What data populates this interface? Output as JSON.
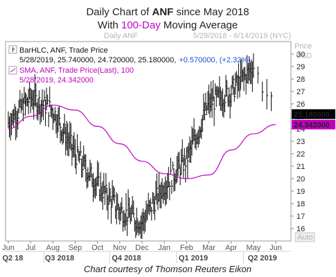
{
  "title": {
    "line1_a": "Daily Chart of ",
    "line1_b": "ANF",
    "line1_c": " since May 2018",
    "line2_a": "With ",
    "line2_b": "100-Day",
    "line2_c": " Moving Average"
  },
  "header_left": "Daily ANF",
  "date_range": "5/29/2018 - 6/14/2019 (NYC)",
  "price_header": "Price",
  "currency": "USD",
  "auto_label": "Auto",
  "credit": "Chart courtesy of Thomson Reuters Eikon",
  "legend": {
    "bar_title": "BarHLC, ANF, Trade Price",
    "bar_values": "5/28/2019, 25.740000, 24.720000, 25.180000,",
    "bar_change": "+0.570000, (+2.32%)",
    "sma_title": "SMA, ANF, Trade Price(Last), 100",
    "sma_values": "5/28/2019, 24.342000"
  },
  "tags": {
    "last_price": "25.180000",
    "sma_value": "24.342000"
  },
  "chart_data": {
    "type": "line",
    "x": [
      "2018-06",
      "2018-07",
      "2018-08",
      "2018-09",
      "2018-10",
      "2018-11",
      "2018-12",
      "2019-01",
      "2019-02",
      "2019-03",
      "2019-04",
      "2019-05",
      "2019-05-28"
    ],
    "series": [
      {
        "name": "BarHLC, ANF, Trade Price",
        "values": [
          24.5,
          26.5,
          25.5,
          22.0,
          19.5,
          17.5,
          16.5,
          19.5,
          21.5,
          26.0,
          27.0,
          29.0,
          25.18
        ]
      },
      {
        "name": "SMA, ANF, Trade Price(Last), 100",
        "values": [
          24.0,
          25.0,
          25.9,
          25.5,
          24.2,
          22.8,
          21.4,
          20.4,
          20.0,
          20.3,
          22.3,
          23.6,
          24.342
        ]
      }
    ],
    "ylim": [
      15,
      31
    ],
    "yticks": [
      16,
      17,
      18,
      19,
      20,
      21,
      22,
      23,
      24,
      25,
      26,
      27,
      28,
      29,
      30
    ],
    "month_labels": [
      "Jun",
      "Jul",
      "Aug",
      "Sep",
      "Oct",
      "Nov",
      "Dec",
      "Jan",
      "Feb",
      "Mar",
      "Apr",
      "May",
      "Jun"
    ],
    "quarter_labels": [
      "Q2 18",
      "Q3 2018",
      "Q4 2018",
      "Q1 2019",
      "Q2 2019"
    ],
    "last_price": 25.18,
    "last_sma": 24.342,
    "colors": {
      "price": "#000000",
      "sma": "#c000c0",
      "tag": "#000000",
      "sma_tag": "#c000c0",
      "title_accent": "#c000c0",
      "change": "#1a4fd6"
    }
  }
}
